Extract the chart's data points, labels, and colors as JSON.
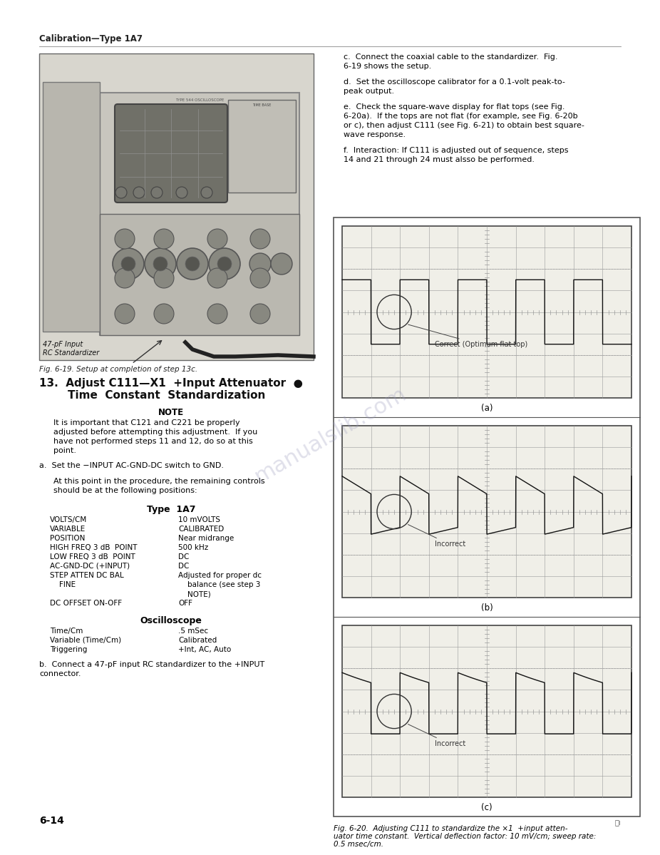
{
  "bg_color": "#f5f5f0",
  "page_bg": "#ffffff",
  "page_width": 9.06,
  "page_height": 11.74,
  "dpi": 100,
  "header_text": "Calibration—Type 1A7",
  "header_fontsize": 9,
  "footer_left": "6-14",
  "footer_fontsize": 10,
  "watermark_text": "manualslib.com",
  "watermark_color": "#9999bb",
  "watermark_alpha": 0.3,
  "image_caption": "Fig. 6-19. Setup at completion of step 13c.",
  "fig_caption_fontsize": 7.5,
  "right_paragraphs": [
    "    c.  Connect the coaxial cable to the standardizer.  Fig.\n6-19 shows the setup.",
    "    d.  Set the oscilloscope calibrator for a 0.1-volt peak-to-\npeak output.",
    "    e.  Check the square-wave display for flat tops (see Fig.\n6-20a).  If the tops are not flat (for example, see Fig. 6-20b\nor c), then adjust C111 (see Fig. 6-21) to obtain best square-\nwave response.",
    "    f.  Interaction: If C111 is adjusted out of sequence, steps\n14 and 21 through 24 must alsso be performed."
  ],
  "section13_line1": "13.  Adjust C111—X1  +Input Attenuator",
  "section13_line2": "Time  Constant  Standardization",
  "note_lines": [
    "It is important that C121 and C221 be properly",
    "adjusted before attempting this adjustment.  If you",
    "have not performed steps 11 and 12, do so at this",
    "point."
  ],
  "para_a": "a.  Set the −INPUT AC-GND-DC switch to GND.",
  "para_at1": "At this point in the procedure, the remaining controls",
  "para_at2": "should be at the following positions:",
  "type1a7_rows": [
    [
      "VOLTS/CM",
      "10 mVOLTS"
    ],
    [
      "VARIABLE",
      "CALIBRATED"
    ],
    [
      "POSITION",
      "Near midrange"
    ],
    [
      "HIGH FREQ 3 dB  POINT",
      "500 kHz"
    ],
    [
      "LOW FREQ 3 dB  POINT",
      "DC"
    ],
    [
      "AC-GND-DC (+INPUT)",
      "DC"
    ],
    [
      "STEP ATTEN DC BAL",
      "Adjusted for proper dc"
    ],
    [
      "    FINE",
      "    balance (see step 3"
    ],
    [
      "",
      "    NOTE)"
    ],
    [
      "DC OFFSET ON-OFF",
      "OFF"
    ]
  ],
  "osc_rows": [
    [
      "Time/Cm",
      ".5 mSec"
    ],
    [
      "Variable (Time/Cm)",
      "Calibrated"
    ],
    [
      "Triggering",
      "+Int, AC, Auto"
    ]
  ],
  "para_b1": "b.  Connect a 47-pF input RC standardizer to the +INPUT",
  "para_b2": "connector.",
  "fig_labels": [
    "(a)",
    "(b)",
    "(c)"
  ],
  "fig_notes": [
    "Correct (Optimum flat top)",
    "Incorrect",
    "Incorrect"
  ],
  "fig_caption1": "Fig. 6-20.  Adjusting C111 to standardize the ×1  +input atten-",
  "fig_caption2": "uator time constant.  Vertical deflection factor: 10 mV/cm; sweep rate:",
  "fig_caption3": "0.5 msec/cm.",
  "grid_color": "#999999",
  "grid_minor_color": "#cccccc",
  "waveform_color": "#111111",
  "box_edge_color": "#444444"
}
